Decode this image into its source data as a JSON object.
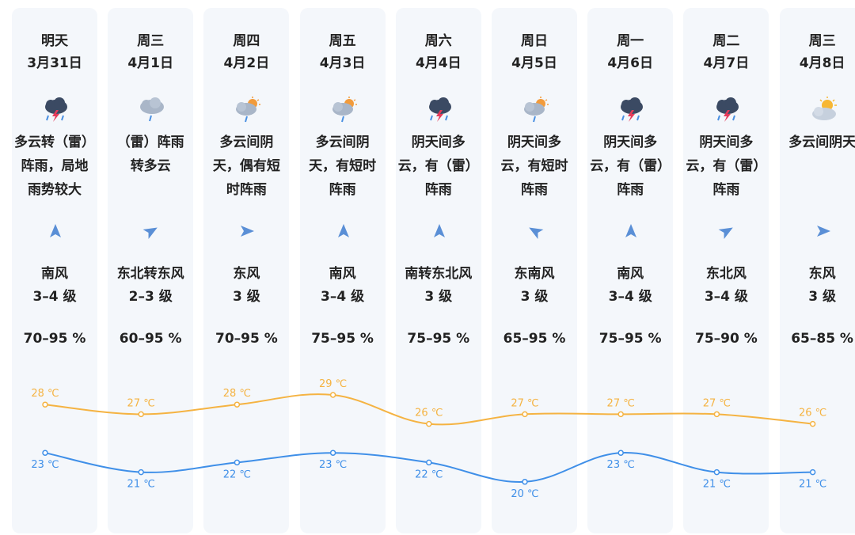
{
  "forecast": [
    {
      "day": "明天",
      "date": "3月31日",
      "icon": "thunder-rain-icon",
      "desc": "多云转（雷）\n阵雨，局地\n雨势较大",
      "wind_icon": "arrow-north-icon",
      "wind_angle": 0,
      "wind_dir": "南风",
      "wind_level": "3–4 级",
      "humidity": "70–95 %",
      "high_label": "28 ℃",
      "low_label": "23 ℃"
    },
    {
      "day": "周三",
      "date": "4月1日",
      "icon": "rain-cloud-icon",
      "desc": "（雷）阵雨\n转多云",
      "wind_icon": "arrow-northeast-icon",
      "wind_angle": 60,
      "wind_dir": "东北转东风",
      "wind_level": "2–3 级",
      "humidity": "60–95 %",
      "high_label": "27 ℃",
      "low_label": "21 ℃"
    },
    {
      "day": "周四",
      "date": "4月2日",
      "icon": "sun-cloud-rain-icon",
      "desc": "多云间阴\n天，偶有短\n时阵雨",
      "wind_icon": "arrow-east-icon",
      "wind_angle": 90,
      "wind_dir": "东风",
      "wind_level": "3 级",
      "humidity": "70–95 %",
      "high_label": "28 ℃",
      "low_label": "22 ℃"
    },
    {
      "day": "周五",
      "date": "4月3日",
      "icon": "sun-cloud-rain-icon",
      "desc": "多云间阴\n天，有短时\n阵雨",
      "wind_icon": "arrow-north-icon",
      "wind_angle": 0,
      "wind_dir": "南风",
      "wind_level": "3–4 级",
      "humidity": "75–95 %",
      "high_label": "29 ℃",
      "low_label": "23 ℃"
    },
    {
      "day": "周六",
      "date": "4月4日",
      "icon": "thunder-rain-icon",
      "desc": "阴天间多\n云，有（雷）\n阵雨",
      "wind_icon": "arrow-north-icon",
      "wind_angle": 0,
      "wind_dir": "南转东北风",
      "wind_level": "3 级",
      "humidity": "75–95 %",
      "high_label": "26 ℃",
      "low_label": "22 ℃"
    },
    {
      "day": "周日",
      "date": "4月5日",
      "icon": "sun-cloud-rain-icon",
      "desc": "阴天间多\n云，有短时\n阵雨",
      "wind_icon": "arrow-northwest-icon",
      "wind_angle": -60,
      "wind_dir": "东南风",
      "wind_level": "3 级",
      "humidity": "65–95 %",
      "high_label": "27 ℃",
      "low_label": "20 ℃"
    },
    {
      "day": "周一",
      "date": "4月6日",
      "icon": "thunder-rain-icon",
      "desc": "阴天间多\n云，有（雷）\n阵雨",
      "wind_icon": "arrow-north-icon",
      "wind_angle": 0,
      "wind_dir": "南风",
      "wind_level": "3–4 级",
      "humidity": "75–95 %",
      "high_label": "27 ℃",
      "low_label": "23 ℃"
    },
    {
      "day": "周二",
      "date": "4月7日",
      "icon": "thunder-rain-icon",
      "desc": "阴天间多\n云，有（雷）\n阵雨",
      "wind_icon": "arrow-northeast-icon",
      "wind_angle": 60,
      "wind_dir": "东北风",
      "wind_level": "3–4 级",
      "humidity": "75–90 %",
      "high_label": "27 ℃",
      "low_label": "21 ℃"
    },
    {
      "day": "周三",
      "date": "4月8日",
      "icon": "sun-cloud-icon",
      "desc": "多云间阴天",
      "wind_icon": "arrow-east-icon",
      "wind_angle": 90,
      "wind_dir": "东风",
      "wind_level": "3 级",
      "humidity": "65–85 %",
      "high_label": "26 ℃",
      "low_label": "21 ℃"
    }
  ],
  "chart_data": {
    "type": "line",
    "categories": [
      "3月31日",
      "4月1日",
      "4月2日",
      "4月3日",
      "4月4日",
      "4月5日",
      "4月6日",
      "4月7日",
      "4月8日"
    ],
    "series": [
      {
        "name": "",
        "values": [
          28,
          27,
          28,
          29,
          26,
          27,
          27,
          27,
          26
        ],
        "color": "#f5b342"
      },
      {
        "name": "",
        "values": [
          23,
          21,
          22,
          23,
          22,
          20,
          23,
          21,
          21
        ],
        "color": "#3f8fe8"
      }
    ],
    "unit": "℃",
    "ylim": [
      18,
      31
    ]
  },
  "colors": {
    "high": "#f5b342",
    "low": "#3f8fe8",
    "card": "#f4f7fb",
    "arrow": "#5a8fd6"
  }
}
